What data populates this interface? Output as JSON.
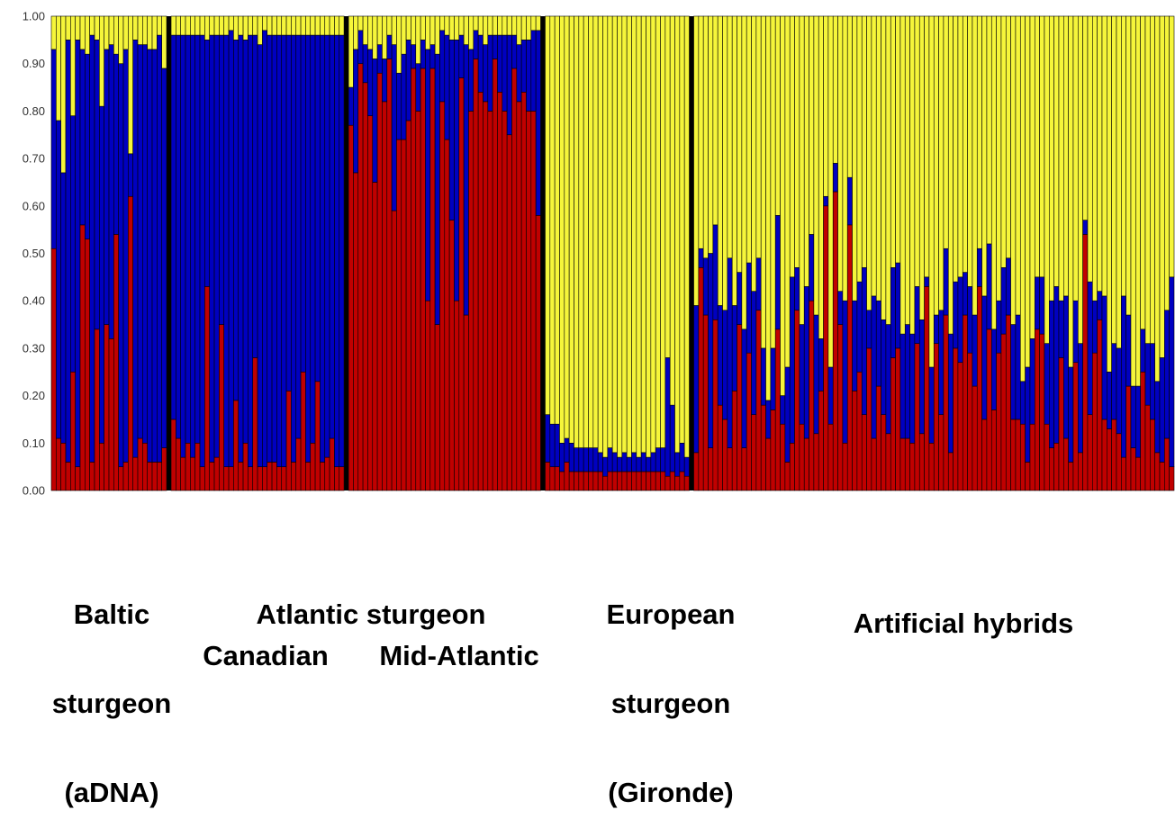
{
  "chart_data": {
    "type": "bar",
    "stacked": true,
    "ylim": [
      0,
      1
    ],
    "y_ticks": [
      "0.00",
      "0.10",
      "0.20",
      "0.30",
      "0.40",
      "0.50",
      "0.60",
      "0.70",
      "0.80",
      "0.90",
      "1.00"
    ],
    "series": [
      {
        "color": "#c00000"
      },
      {
        "color": "#0000c0"
      },
      {
        "color": "#f5f53a"
      }
    ],
    "groups": [
      {
        "labels": [
          "Baltic",
          "sturgeon",
          "(aDNA)"
        ],
        "red": [
          0.51,
          0.11,
          0.1,
          0.06,
          0.25,
          0.05,
          0.56,
          0.53,
          0.06,
          0.34,
          0.1,
          0.35,
          0.32,
          0.54,
          0.05,
          0.06,
          0.62,
          0.07,
          0.11,
          0.1,
          0.06,
          0.06,
          0.06,
          0.09
        ],
        "blue": [
          0.42,
          0.67,
          0.57,
          0.89,
          0.54,
          0.9,
          0.37,
          0.39,
          0.9,
          0.61,
          0.71,
          0.58,
          0.62,
          0.38,
          0.85,
          0.87,
          0.09,
          0.88,
          0.83,
          0.84,
          0.87,
          0.87,
          0.9,
          0.8
        ]
      },
      {
        "labels": [
          "Atlantic sturgeon",
          "Canadian"
        ],
        "red": [
          0.15,
          0.11,
          0.07,
          0.1,
          0.07,
          0.1,
          0.05,
          0.43,
          0.06,
          0.07,
          0.35,
          0.05,
          0.05,
          0.19,
          0.06,
          0.1,
          0.05,
          0.28,
          0.05,
          0.05,
          0.06,
          0.06,
          0.05,
          0.05,
          0.21,
          0.06,
          0.11,
          0.25,
          0.06,
          0.1,
          0.23,
          0.06,
          0.07,
          0.11,
          0.05,
          0.05
        ],
        "blue": [
          0.81,
          0.85,
          0.89,
          0.86,
          0.89,
          0.86,
          0.91,
          0.52,
          0.9,
          0.89,
          0.61,
          0.91,
          0.92,
          0.76,
          0.9,
          0.85,
          0.91,
          0.68,
          0.89,
          0.92,
          0.9,
          0.9,
          0.91,
          0.91,
          0.75,
          0.9,
          0.85,
          0.71,
          0.9,
          0.86,
          0.73,
          0.9,
          0.89,
          0.85,
          0.91,
          0.91
        ]
      },
      {
        "labels": [
          "Mid-Atlantic"
        ],
        "red": [
          0.77,
          0.67,
          0.9,
          0.86,
          0.79,
          0.65,
          0.88,
          0.82,
          0.91,
          0.59,
          0.74,
          0.74,
          0.78,
          0.89,
          0.8,
          0.89,
          0.4,
          0.89,
          0.35,
          0.82,
          0.74,
          0.57,
          0.4,
          0.87,
          0.37,
          0.8,
          0.91,
          0.84,
          0.82,
          0.8,
          0.91,
          0.84,
          0.8,
          0.75,
          0.89,
          0.82,
          0.84,
          0.8,
          0.8,
          0.58
        ],
        "blue": [
          0.08,
          0.26,
          0.07,
          0.08,
          0.14,
          0.26,
          0.06,
          0.09,
          0.05,
          0.35,
          0.14,
          0.18,
          0.17,
          0.05,
          0.1,
          0.06,
          0.53,
          0.05,
          0.57,
          0.15,
          0.22,
          0.38,
          0.55,
          0.09,
          0.57,
          0.13,
          0.06,
          0.12,
          0.12,
          0.16,
          0.05,
          0.12,
          0.16,
          0.21,
          0.07,
          0.12,
          0.11,
          0.15,
          0.17,
          0.39
        ]
      },
      {
        "labels": [
          "European",
          "sturgeon",
          "(Gironde)"
        ],
        "red": [
          0.06,
          0.05,
          0.05,
          0.04,
          0.06,
          0.04,
          0.04,
          0.04,
          0.04,
          0.04,
          0.04,
          0.04,
          0.03,
          0.04,
          0.04,
          0.04,
          0.04,
          0.04,
          0.04,
          0.04,
          0.04,
          0.04,
          0.04,
          0.04,
          0.04,
          0.03,
          0.04,
          0.03,
          0.04,
          0.03
        ],
        "blue": [
          0.1,
          0.09,
          0.09,
          0.06,
          0.05,
          0.06,
          0.05,
          0.05,
          0.05,
          0.05,
          0.05,
          0.04,
          0.04,
          0.05,
          0.04,
          0.03,
          0.04,
          0.03,
          0.04,
          0.03,
          0.04,
          0.03,
          0.04,
          0.05,
          0.05,
          0.25,
          0.14,
          0.05,
          0.06,
          0.04
        ]
      },
      {
        "labels": [
          "Artificial hybrids"
        ],
        "red": [
          0.08,
          0.47,
          0.37,
          0.09,
          0.36,
          0.18,
          0.15,
          0.09,
          0.21,
          0.35,
          0.09,
          0.29,
          0.16,
          0.38,
          0.18,
          0.11,
          0.17,
          0.34,
          0.14,
          0.06,
          0.1,
          0.38,
          0.14,
          0.11,
          0.4,
          0.12,
          0.21,
          0.6,
          0.14,
          0.63,
          0.35,
          0.1,
          0.56,
          0.21,
          0.25,
          0.16,
          0.3,
          0.11,
          0.22,
          0.16,
          0.12,
          0.28,
          0.3,
          0.11,
          0.11,
          0.1,
          0.31,
          0.12,
          0.43,
          0.1,
          0.31,
          0.16,
          0.37,
          0.08,
          0.3,
          0.27,
          0.37,
          0.29,
          0.22,
          0.43,
          0.15,
          0.34,
          0.17,
          0.29,
          0.33,
          0.37,
          0.15,
          0.15,
          0.14,
          0.06,
          0.14,
          0.34,
          0.33,
          0.14,
          0.09,
          0.1,
          0.28,
          0.11,
          0.06,
          0.27,
          0.08,
          0.54,
          0.16,
          0.29,
          0.36,
          0.15,
          0.13,
          0.15,
          0.12,
          0.07,
          0.22,
          0.09,
          0.07,
          0.25,
          0.18,
          0.15,
          0.08,
          0.06,
          0.11,
          0.05
        ],
        "blue": [
          0.31,
          0.04,
          0.12,
          0.41,
          0.2,
          0.21,
          0.23,
          0.4,
          0.18,
          0.11,
          0.25,
          0.19,
          0.26,
          0.11,
          0.12,
          0.08,
          0.13,
          0.24,
          0.06,
          0.2,
          0.35,
          0.09,
          0.21,
          0.32,
          0.14,
          0.25,
          0.11,
          0.02,
          0.12,
          0.06,
          0.07,
          0.3,
          0.1,
          0.19,
          0.19,
          0.31,
          0.08,
          0.3,
          0.18,
          0.2,
          0.23,
          0.19,
          0.18,
          0.22,
          0.24,
          0.23,
          0.12,
          0.24,
          0.02,
          0.16,
          0.06,
          0.22,
          0.14,
          0.25,
          0.14,
          0.18,
          0.09,
          0.14,
          0.15,
          0.08,
          0.26,
          0.18,
          0.17,
          0.11,
          0.14,
          0.12,
          0.2,
          0.22,
          0.09,
          0.2,
          0.18,
          0.11,
          0.12,
          0.17,
          0.31,
          0.33,
          0.12,
          0.3,
          0.2,
          0.13,
          0.23,
          0.03,
          0.28,
          0.11,
          0.06,
          0.26,
          0.12,
          0.16,
          0.18,
          0.34,
          0.15,
          0.13,
          0.15,
          0.09,
          0.13,
          0.16,
          0.15,
          0.22,
          0.27,
          0.4
        ]
      }
    ]
  }
}
